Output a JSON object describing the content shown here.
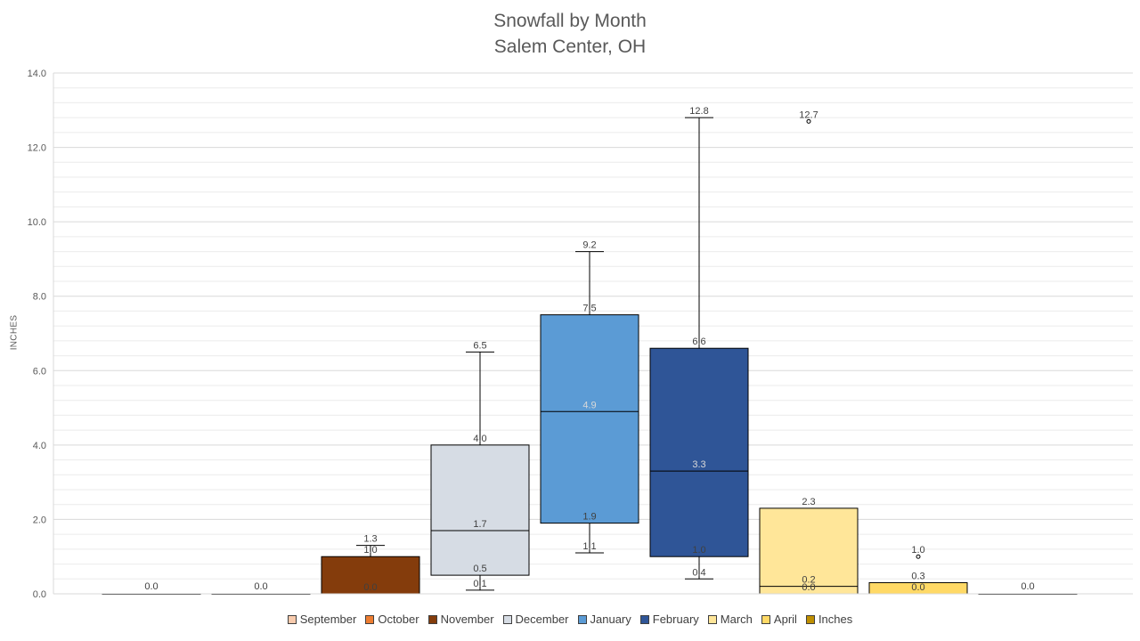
{
  "chart_data": {
    "type": "box",
    "title": "Snowfall by Month",
    "subtitle": "Salem Center, OH",
    "ylabel": "INCHES",
    "ylim": [
      0,
      14
    ],
    "y_ticks": [
      "0.0",
      "2.0",
      "4.0",
      "6.0",
      "8.0",
      "10.0",
      "12.0",
      "14.0"
    ],
    "grid": true,
    "legend_position": "bottom",
    "series": [
      {
        "name": "September",
        "color": "#F8CBAD",
        "min": 0.0,
        "q1": 0.0,
        "median": 0.0,
        "q3": 0.0,
        "max": 0.0,
        "outliers": [],
        "labels": [
          {
            "text": "0.0",
            "value": 0.0
          }
        ]
      },
      {
        "name": "October",
        "color": "#ED7D31",
        "min": 0.0,
        "q1": 0.0,
        "median": 0.0,
        "q3": 0.0,
        "max": 0.0,
        "outliers": [],
        "labels": [
          {
            "text": "0.0",
            "value": 0.0
          }
        ]
      },
      {
        "name": "November",
        "color": "#843C0C",
        "min": 0.0,
        "q1": 0.0,
        "median": 0.0,
        "q3": 1.0,
        "max": 1.3,
        "outliers": [],
        "labels": [
          {
            "text": "1.3",
            "value": 1.3
          },
          {
            "text": "1.0",
            "value": 1.0
          },
          {
            "text": "0.0",
            "value": 0.0
          }
        ]
      },
      {
        "name": "December",
        "color": "#D6DCE4",
        "min": 0.1,
        "q1": 0.5,
        "median": 1.7,
        "q3": 4.0,
        "max": 6.5,
        "outliers": [],
        "labels": [
          {
            "text": "6.5",
            "value": 6.5
          },
          {
            "text": "4.0",
            "value": 4.0
          },
          {
            "text": "1.7",
            "value": 1.7
          },
          {
            "text": "0.5",
            "value": 0.5
          },
          {
            "text": "0.1",
            "value": 0.1
          }
        ]
      },
      {
        "name": "January",
        "color": "#5B9BD5",
        "min": 1.1,
        "q1": 1.9,
        "median": 4.9,
        "q3": 7.5,
        "max": 9.2,
        "outliers": [],
        "labels": [
          {
            "text": "9.2",
            "value": 9.2
          },
          {
            "text": "7.5",
            "value": 7.5
          },
          {
            "text": "4.9",
            "value": 4.9
          },
          {
            "text": "1.9",
            "value": 1.9
          },
          {
            "text": "1.1",
            "value": 1.1
          }
        ]
      },
      {
        "name": "February",
        "color": "#2F5597",
        "min": 0.4,
        "q1": 1.0,
        "median": 3.3,
        "q3": 6.6,
        "max": 12.8,
        "outliers": [],
        "labels": [
          {
            "text": "12.8",
            "value": 12.8
          },
          {
            "text": "6.6",
            "value": 6.6
          },
          {
            "text": "3.3",
            "value": 3.3
          },
          {
            "text": "1.0",
            "value": 1.0
          },
          {
            "text": "0.4",
            "value": 0.4
          }
        ]
      },
      {
        "name": "March",
        "color": "#FFE699",
        "min": 0.0,
        "q1": 0.0,
        "median": 0.2,
        "q3": 2.3,
        "max": 2.3,
        "outliers": [
          12.7
        ],
        "labels": [
          {
            "text": "12.7",
            "value": 12.7
          },
          {
            "text": "2.3",
            "value": 2.3
          },
          {
            "text": "0.2",
            "value": 0.2
          },
          {
            "text": "0.0",
            "value": 0.0
          }
        ]
      },
      {
        "name": "April",
        "color": "#FFD966",
        "min": 0.0,
        "q1": 0.0,
        "median": 0.0,
        "q3": 0.3,
        "max": 0.3,
        "outliers": [
          1.0
        ],
        "labels": [
          {
            "text": "1.0",
            "value": 1.0
          },
          {
            "text": "0.3",
            "value": 0.3
          },
          {
            "text": "0.0",
            "value": 0.0
          }
        ]
      },
      {
        "name": "Inches",
        "color": "#BF8F00",
        "min": 0.0,
        "q1": 0.0,
        "median": 0.0,
        "q3": 0.0,
        "max": 0.0,
        "outliers": [],
        "labels": [
          {
            "text": "0.0",
            "value": 0.0
          }
        ]
      }
    ]
  }
}
